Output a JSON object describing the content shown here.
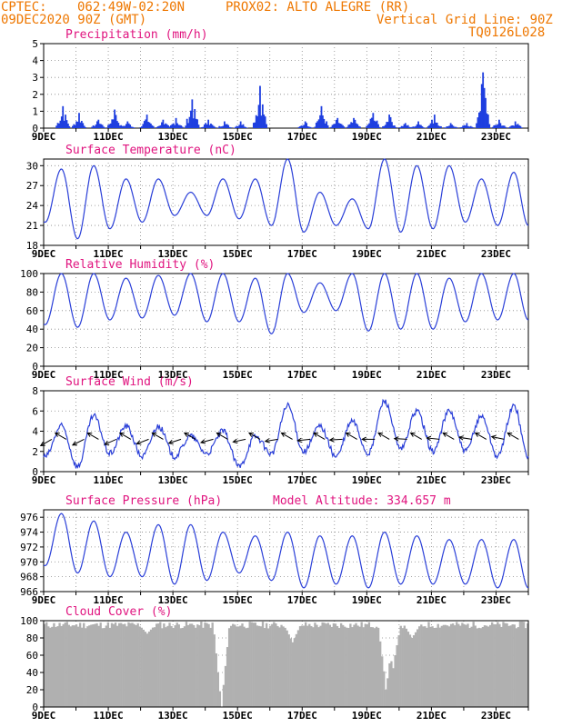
{
  "header": {
    "source": "CPTEC:",
    "coords": "062:49W-02:20N",
    "station": "PROX02: ALTO ALEGRE (RR)",
    "date": "09DEC2020 90Z (GMT)",
    "vgrid": "Vertical Grid Line: 90Z",
    "model": "TQ0126L028"
  },
  "chart_data": [
    {
      "type": "bar",
      "title": "Precipitation (mm/h)",
      "ylim": [
        0,
        5
      ],
      "yticks": [
        0,
        1,
        2,
        3,
        4,
        5
      ],
      "xticks": [
        "9DEC",
        "11DEC",
        "13DEC",
        "15DEC",
        "17DEC",
        "19DEC",
        "21DEC",
        "23DEC"
      ],
      "color": "#1f3fe0",
      "peaks": [
        {
          "day": 9.6,
          "value": 1.3
        },
        {
          "day": 10.1,
          "value": 0.9
        },
        {
          "day": 10.7,
          "value": 0.5
        },
        {
          "day": 11.2,
          "value": 1.1
        },
        {
          "day": 11.6,
          "value": 0.4
        },
        {
          "day": 12.2,
          "value": 0.8
        },
        {
          "day": 12.7,
          "value": 0.5
        },
        {
          "day": 13.1,
          "value": 0.6
        },
        {
          "day": 13.6,
          "value": 1.7
        },
        {
          "day": 14.1,
          "value": 0.5
        },
        {
          "day": 14.6,
          "value": 0.4
        },
        {
          "day": 15.1,
          "value": 0.4
        },
        {
          "day": 15.7,
          "value": 2.5
        },
        {
          "day": 17.1,
          "value": 0.4
        },
        {
          "day": 17.6,
          "value": 1.3
        },
        {
          "day": 18.1,
          "value": 0.6
        },
        {
          "day": 18.6,
          "value": 0.6
        },
        {
          "day": 19.2,
          "value": 0.9
        },
        {
          "day": 19.7,
          "value": 0.8
        },
        {
          "day": 20.2,
          "value": 0.3
        },
        {
          "day": 20.6,
          "value": 0.4
        },
        {
          "day": 21.1,
          "value": 0.8
        },
        {
          "day": 21.6,
          "value": 0.3
        },
        {
          "day": 22.1,
          "value": 0.3
        },
        {
          "day": 22.6,
          "value": 3.3
        },
        {
          "day": 23.1,
          "value": 0.5
        },
        {
          "day": 23.6,
          "value": 0.4
        }
      ]
    },
    {
      "type": "line",
      "title": "Surface Temperature (nC)",
      "ylim": [
        18,
        31
      ],
      "yticks": [
        18,
        21,
        24,
        27,
        30
      ],
      "xticks": [
        "9DEC",
        "11DEC",
        "13DEC",
        "15DEC",
        "17DEC",
        "19DEC",
        "21DEC",
        "23DEC"
      ],
      "color": "#2a3fd8",
      "minima": [
        21.5,
        19.0,
        20.5,
        21.5,
        22.5,
        22.5,
        22.0,
        21.0,
        20.0,
        21.0,
        20.5,
        20.0,
        20.5,
        21.5,
        21.0
      ],
      "maxima": [
        29.5,
        30.0,
        28.0,
        28.0,
        26.0,
        28.0,
        28.0,
        31.0,
        26.0,
        25.0,
        31.0,
        30.0,
        30.0,
        28.0,
        29.0
      ]
    },
    {
      "type": "line",
      "title": "Relative Humidity (%)",
      "ylim": [
        0,
        100
      ],
      "yticks": [
        0,
        20,
        40,
        60,
        80,
        100
      ],
      "xticks": [
        "9DEC",
        "11DEC",
        "13DEC",
        "15DEC",
        "17DEC",
        "19DEC",
        "21DEC",
        "23DEC"
      ],
      "color": "#2a3fd8",
      "minima": [
        45,
        42,
        50,
        52,
        55,
        48,
        48,
        35,
        58,
        60,
        38,
        40,
        40,
        48,
        50
      ],
      "maxima": [
        100,
        100,
        95,
        98,
        100,
        100,
        95,
        100,
        90,
        100,
        100,
        100,
        95,
        100,
        100
      ]
    },
    {
      "type": "line",
      "title": "Surface Wind (m/s)",
      "ylim": [
        0,
        8
      ],
      "yticks": [
        0,
        2,
        4,
        6,
        8
      ],
      "xticks": [
        "9DEC",
        "11DEC",
        "13DEC",
        "15DEC",
        "17DEC",
        "19DEC",
        "21DEC",
        "23DEC"
      ],
      "color": "#2a3fd8",
      "minima": [
        1.5,
        0.5,
        1.8,
        1.5,
        1.5,
        1.8,
        0.5,
        1.8,
        2.0,
        1.5,
        1.8,
        2.2,
        2.0,
        2.0,
        1.5
      ],
      "maxima": [
        4.5,
        5.5,
        4.5,
        4.5,
        3.5,
        4.0,
        3.5,
        6.5,
        4.5,
        5.0,
        7.0,
        6.0,
        6.0,
        5.5,
        6.5
      ]
    },
    {
      "type": "line",
      "title": "Surface Pressure (hPa)",
      "subtitle": "Model Altitude: 334.657 m",
      "ylim": [
        966,
        977
      ],
      "yticks": [
        966,
        968,
        970,
        972,
        974,
        976
      ],
      "xticks": [
        "9DEC",
        "11DEC",
        "13DEC",
        "15DEC",
        "17DEC",
        "19DEC",
        "21DEC",
        "23DEC"
      ],
      "color": "#2a3fd8",
      "minima": [
        969.5,
        968.5,
        968.0,
        968.0,
        967.0,
        967.5,
        968.5,
        967.5,
        966.5,
        967.0,
        966.5,
        967.0,
        967.0,
        967.0,
        966.5
      ],
      "maxima": [
        976.5,
        975.5,
        974.0,
        975.0,
        975.0,
        974.0,
        973.5,
        974.0,
        973.5,
        973.5,
        974.0,
        973.5,
        973.0,
        973.0,
        973.0
      ]
    },
    {
      "type": "area",
      "title": "Cloud Cover (%)",
      "ylim": [
        0,
        100
      ],
      "yticks": [
        0,
        20,
        40,
        60,
        80,
        100
      ],
      "xticks": [
        "9DEC",
        "11DEC",
        "13DEC",
        "15DEC",
        "17DEC",
        "19DEC",
        "21DEC",
        "23DEC"
      ],
      "color": "#b0b0b0",
      "typical": 95,
      "dips": [
        {
          "day": 14.5,
          "value": 0
        },
        {
          "day": 16.7,
          "value": 75
        },
        {
          "day": 19.6,
          "value": 20
        },
        {
          "day": 19.8,
          "value": 45
        },
        {
          "day": 20.4,
          "value": 80
        },
        {
          "day": 12.2,
          "value": 85
        }
      ]
    }
  ]
}
